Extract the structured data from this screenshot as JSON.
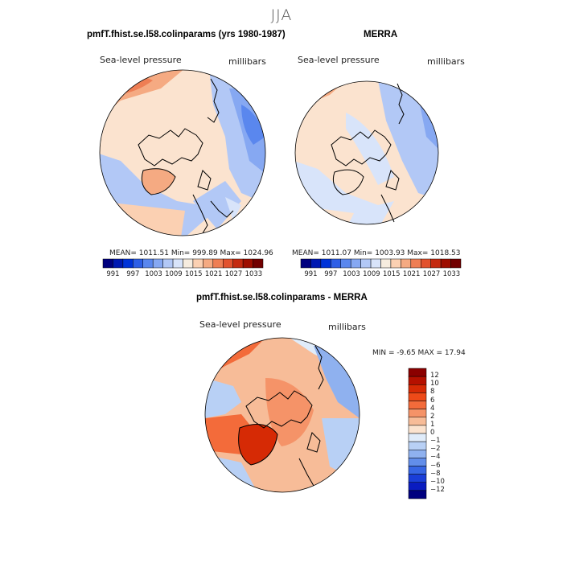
{
  "season": "JJA",
  "panels": {
    "model": {
      "title": "pmfT.fhist.se.l58.colinparams (yrs 1980-1987)",
      "var_label": "Sea-level pressure",
      "units": "millibars",
      "stats": "MEAN= 1011.51   Min= 999.89   Max= 1024.96"
    },
    "obs": {
      "title": "MERRA",
      "var_label": "Sea-level pressure",
      "units": "millibars",
      "stats": "MEAN= 1011.07   Min= 1003.93   Max= 1018.53"
    },
    "diff": {
      "title": "pmfT.fhist.se.l58.colinparams - MERRA",
      "var_label": "Sea-level pressure",
      "units": "millibars",
      "stats": "MIN =   -9.65  MAX =   17.94"
    }
  },
  "colorbars": {
    "abs_ticks": [
      "991",
      "997",
      "1003",
      "1009",
      "1015",
      "1021",
      "1027",
      "1033"
    ],
    "abs_colors": [
      "#00007f",
      "#0019b2",
      "#0033d8",
      "#2e5fe6",
      "#5a87ee",
      "#86a8f2",
      "#b2c8f6",
      "#d8e4fa",
      "#f6ecdf",
      "#fbd0b2",
      "#f5aa82",
      "#ee7e54",
      "#e2522e",
      "#c42a10",
      "#9e0e00",
      "#720000"
    ],
    "diff_ticks": [
      "12",
      "10",
      "8",
      "6",
      "4",
      "2",
      "1",
      "0",
      "−1",
      "−2",
      "−4",
      "−6",
      "−8",
      "−10",
      "−12"
    ],
    "diff_colors": [
      "#8b0000",
      "#b51000",
      "#d62a05",
      "#ee4a18",
      "#f36b3a",
      "#f59368",
      "#f7bc98",
      "#fbe3cf",
      "#e0ecfa",
      "#b8d0f5",
      "#8fb1ef",
      "#628eea",
      "#3766e4",
      "#1a3ed8",
      "#0a1cc0",
      "#00007f"
    ]
  },
  "chart_data": [
    {
      "type": "heatmap",
      "title": "pmfT.fhist.se.l58.colinparams (yrs 1980-1987)",
      "variable": "Sea-level pressure",
      "units": "millibars",
      "projection": "north polar stereographic",
      "mean": 1011.51,
      "min": 999.89,
      "max": 1024.96,
      "colorbar_levels": [
        991,
        997,
        1003,
        1009,
        1015,
        1021,
        1027,
        1033
      ]
    },
    {
      "type": "heatmap",
      "title": "MERRA",
      "variable": "Sea-level pressure",
      "units": "millibars",
      "projection": "north polar stereographic",
      "mean": 1011.07,
      "min": 1003.93,
      "max": 1018.53,
      "colorbar_levels": [
        991,
        997,
        1003,
        1009,
        1015,
        1021,
        1027,
        1033
      ]
    },
    {
      "type": "heatmap",
      "title": "pmfT.fhist.se.l58.colinparams - MERRA",
      "variable": "Sea-level pressure",
      "units": "millibars",
      "projection": "north polar stereographic",
      "min": -9.65,
      "max": 17.94,
      "colorbar_levels": [
        12,
        10,
        8,
        6,
        4,
        2,
        1,
        0,
        -1,
        -2,
        -4,
        -6,
        -8,
        -10,
        -12
      ]
    }
  ]
}
